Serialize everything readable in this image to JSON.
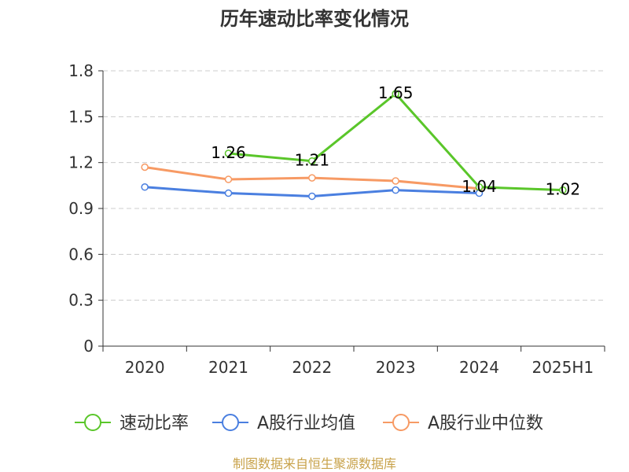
{
  "chart_data": {
    "type": "line",
    "title": "历年速动比率变化情况",
    "categories": [
      "2020",
      "2021",
      "2022",
      "2023",
      "2024",
      "2025H1"
    ],
    "ylim": [
      0,
      1.8
    ],
    "yticks": [
      "0",
      "0.3",
      "0.6",
      "0.9",
      "1.2",
      "1.5",
      "1.8"
    ],
    "ytick_values": [
      0,
      0.3,
      0.6,
      0.9,
      1.2,
      1.5,
      1.8
    ],
    "grid": true,
    "legend_position": "bottom",
    "series": [
      {
        "name": "速动比率",
        "color": "#5ac62a",
        "values": [
          null,
          1.26,
          1.21,
          1.65,
          1.04,
          1.02
        ],
        "labels": [
          "",
          "1.26",
          "1.21",
          "1.65",
          "1.04",
          "1.02"
        ]
      },
      {
        "name": "A股行业均值",
        "color": "#4a7fe0",
        "values": [
          1.04,
          1.0,
          0.98,
          1.02,
          1.0,
          null
        ]
      },
      {
        "name": "A股行业中位数",
        "color": "#f79a64",
        "values": [
          1.17,
          1.09,
          1.1,
          1.08,
          1.03,
          null
        ]
      }
    ]
  },
  "footer": {
    "source": "制图数据来自恒生聚源数据库"
  }
}
